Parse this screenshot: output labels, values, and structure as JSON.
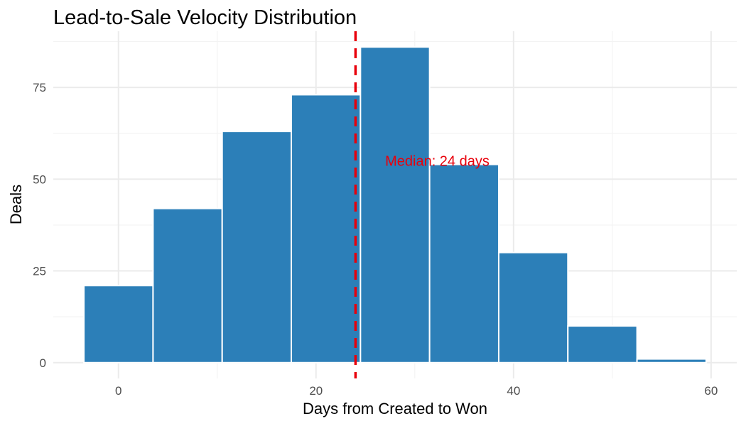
{
  "chart_data": {
    "type": "bar",
    "title": "Lead-to-Sale Velocity Distribution",
    "xlabel": "Days from Created to Won",
    "ylabel": "Deals",
    "bin_width": 7,
    "bins": [
      {
        "start": -3.5,
        "end": 3.5,
        "count": 21
      },
      {
        "start": 3.5,
        "end": 10.5,
        "count": 42
      },
      {
        "start": 10.5,
        "end": 17.5,
        "count": 63
      },
      {
        "start": 17.5,
        "end": 24.5,
        "count": 73
      },
      {
        "start": 24.5,
        "end": 31.5,
        "count": 86
      },
      {
        "start": 31.5,
        "end": 38.5,
        "count": 54
      },
      {
        "start": 38.5,
        "end": 45.5,
        "count": 30
      },
      {
        "start": 45.5,
        "end": 52.5,
        "count": 10
      },
      {
        "start": 52.5,
        "end": 59.5,
        "count": 1
      }
    ],
    "xlim": [
      -6.6,
      62.6
    ],
    "ylim": [
      -4.3,
      90.3
    ],
    "x_ticks": [
      0,
      20,
      40,
      60
    ],
    "x_minor_ticks": [
      10,
      30,
      50
    ],
    "y_ticks": [
      0,
      25,
      50,
      75
    ],
    "y_minor_ticks": [
      12.5,
      37.5,
      62.5,
      87.5
    ],
    "grid": true,
    "legend": "none",
    "bar_color": "#2c7fb8",
    "median": {
      "value": 24,
      "label": "Median: 24 days",
      "label_x": 27,
      "label_y": 55,
      "color": "#e8000b"
    }
  }
}
